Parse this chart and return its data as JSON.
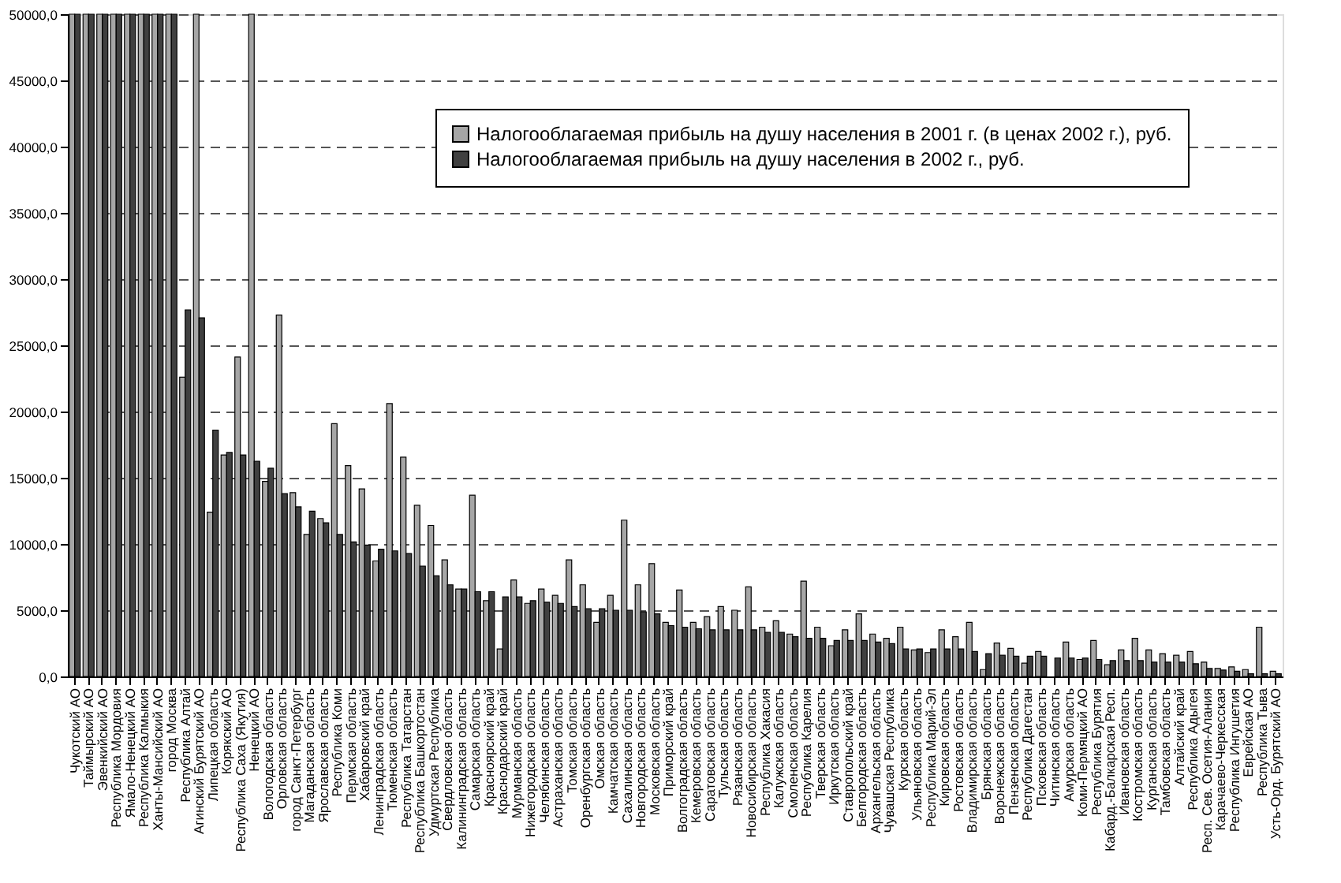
{
  "chart_data": {
    "type": "bar",
    "categories": [
      "Чукотский АО",
      "Таймырский АО",
      "Эвенкийский АО",
      "Республика Мордовия",
      "Ямало-Ненецкий АО",
      "Республика Калмыкия",
      "Ханты-Мансийский АО",
      "город Москва",
      "Республика Алтай",
      "Агинский Бурятский АО",
      "Липецкая область",
      "Корякский АО",
      "Республика Саха (Якутия)",
      "Ненецкий АО",
      "Вологодская область",
      "Орловская область",
      "город Санкт-Петербург",
      "Магаданская область",
      "Ярославская область",
      "Республика Коми",
      "Пермская область",
      "Хабаровский край",
      "Ленинградская область",
      "Тюменская область",
      "Республика Татарстан",
      "Республика Башкортостан",
      "Удмуртская Республика",
      "Свердловская область",
      "Калининградская область",
      "Самарская область",
      "Красноярский край",
      "Краснодарский край",
      "Мурманская область",
      "Нижегородская область",
      "Челябинская область",
      "Астраханская область",
      "Томская область",
      "Оренбургская область",
      "Омская область",
      "Камчатская область",
      "Сахалинская область",
      "Новгородская область",
      "Московская область",
      "Приморский край",
      "Волгоградская область",
      "Кемеровская область",
      "Саратовская область",
      "Тульская область",
      "Рязанская область",
      "Новосибирская область",
      "Республика Хакасия",
      "Калужская область",
      "Смоленская область",
      "Республика Карелия",
      "Тверская область",
      "Иркутская область",
      "Ставропольский край",
      "Белгородская область",
      "Архангельская область",
      "Чувашская Республика",
      "Курская область",
      "Ульяновская область",
      "Республика Марий-Эл",
      "Кировская область",
      "Ростовская область",
      "Владимирская область",
      "Брянская область",
      "Воронежская область",
      "Пензенская область",
      "Республика Дагестан",
      "Псковская область",
      "Читинская область",
      "Амурская область",
      "Коми-Пермяцкий АО",
      "Республика Бурятия",
      "Кабард.-Балкарская Респ.",
      "Ивановская область",
      "Костромская область",
      "Курганская область",
      "Тамбовская область",
      "Алтайский край",
      "Республика Адыгея",
      "Респ. Сев. Осетия-Алания",
      "Карачаево-Черкесская",
      "Республика Ингушетия",
      "Еврейская АО",
      "Республика Тыва",
      "Усть-Орд. Бурятский АО"
    ],
    "series": [
      {
        "name": "Налогооблагаемая прибыль на душу населения в 2001 г. (в ценах 2002 г.), руб.",
        "color": "#a6a6a6",
        "values": [
          50000,
          50000,
          50000,
          50000,
          50000,
          50000,
          50000,
          50000,
          22600,
          50000,
          12400,
          16720,
          24120,
          50000,
          14720,
          27280,
          13880,
          10720,
          11920,
          19080,
          15920,
          14160,
          8720,
          20600,
          16560,
          12920,
          11400,
          8800,
          6600,
          13680,
          5720,
          2080,
          7280,
          5520,
          6600,
          6120,
          8800,
          6920,
          4080,
          6120,
          11800,
          6920,
          8520,
          4080,
          6520,
          4080,
          4520,
          5280,
          5000,
          6760,
          3720,
          4200,
          3200,
          7200,
          3720,
          2320,
          3520,
          4720,
          3200,
          2880,
          3720,
          2000,
          1800,
          3520,
          3000,
          4080,
          520,
          2520,
          2120,
          1000,
          1880,
          null,
          2600,
          1280,
          2720,
          880,
          2000,
          2880,
          2000,
          1720,
          1600,
          1880,
          1080,
          600,
          720,
          520,
          3720,
          400
        ]
      },
      {
        "name": "Налогооблагаемая прибыль на душу населения в 2002 г., руб.",
        "color": "#404040",
        "values": [
          50000,
          50000,
          50000,
          50000,
          50000,
          50000,
          50000,
          50000,
          27680,
          27080,
          18600,
          16920,
          16720,
          16240,
          15720,
          13800,
          12800,
          12480,
          11600,
          10720,
          10160,
          9920,
          9600,
          9480,
          9280,
          8320,
          7600,
          6920,
          6600,
          6400,
          6400,
          6000,
          6000,
          5720,
          5600,
          5520,
          5280,
          5120,
          5120,
          5000,
          5000,
          4880,
          4720,
          3840,
          3720,
          3600,
          3520,
          3520,
          3520,
          3520,
          3320,
          3320,
          3000,
          2880,
          2880,
          2720,
          2720,
          2720,
          2600,
          2480,
          2080,
          2080,
          2080,
          2080,
          2080,
          1880,
          1720,
          1600,
          1520,
          1520,
          1520,
          1400,
          1400,
          1400,
          1280,
          1200,
          1200,
          1200,
          1080,
          1080,
          1080,
          960,
          600,
          480,
          400,
          200,
          200,
          200
        ]
      }
    ],
    "ylim": [
      0,
      50000
    ],
    "yticks": [
      {
        "value": 0,
        "label": "0,0"
      },
      {
        "value": 5000,
        "label": "5000,0"
      },
      {
        "value": 10000,
        "label": "10000,0"
      },
      {
        "value": 15000,
        "label": "15000,0"
      },
      {
        "value": 20000,
        "label": "20000,0"
      },
      {
        "value": 25000,
        "label": "25000,0"
      },
      {
        "value": 30000,
        "label": "30000,0"
      },
      {
        "value": 35000,
        "label": "35000,0"
      },
      {
        "value": 40000,
        "label": "40000,0"
      },
      {
        "value": 45000,
        "label": "45000,0"
      },
      {
        "value": 50000,
        "label": "50000,0"
      }
    ],
    "grid": "y",
    "legend": "top right"
  }
}
